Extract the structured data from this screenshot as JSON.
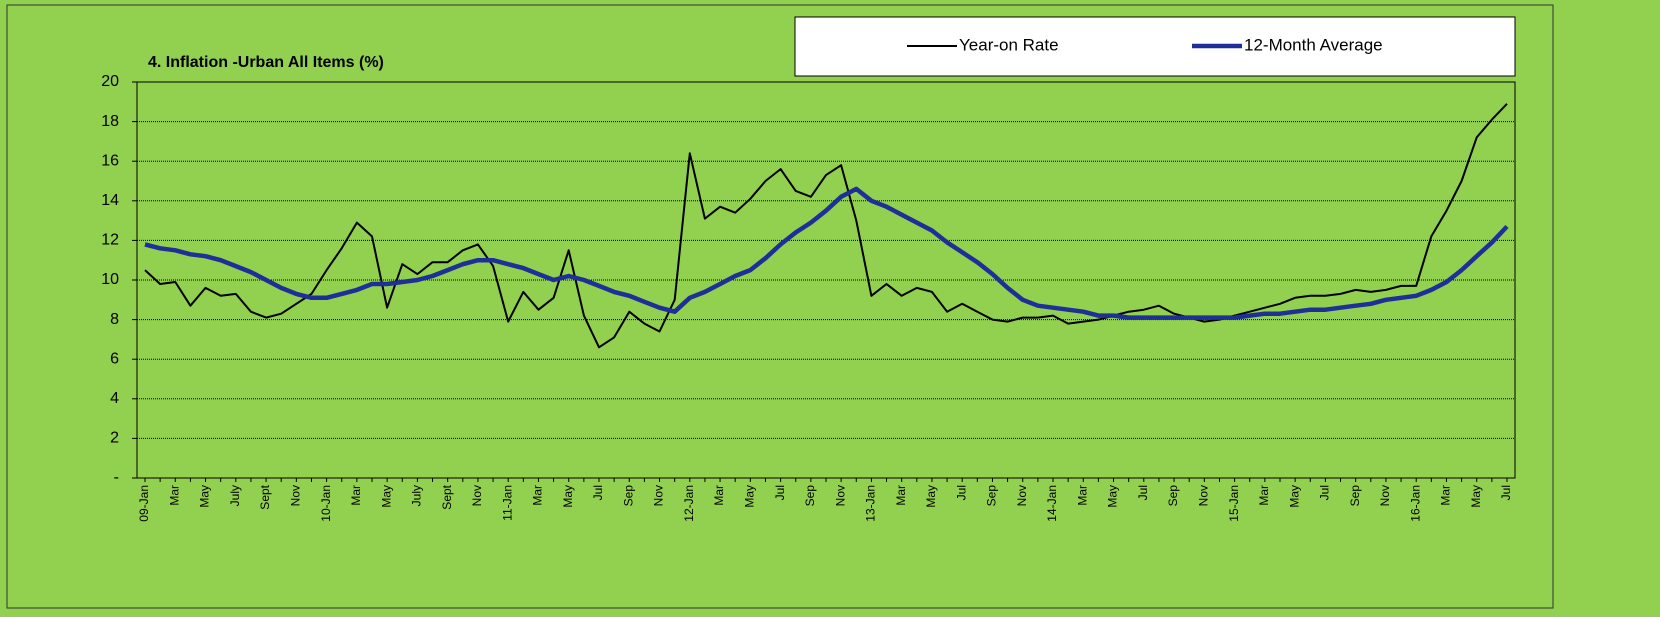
{
  "chart_data": {
    "type": "line",
    "title": "4. Inflation -Urban All Items (%)",
    "categories": [
      "09-Jan",
      null,
      "Mar",
      null,
      "May",
      null,
      "July",
      null,
      "Sept",
      null,
      "Nov",
      null,
      "10-Jan",
      null,
      "Mar",
      null,
      "May",
      null,
      "July",
      null,
      "Sept",
      null,
      "Nov",
      null,
      "11-Jan",
      null,
      "Mar",
      null,
      "May",
      null,
      "Jul",
      null,
      "Sep",
      null,
      "Nov",
      null,
      "12-Jan",
      null,
      "Mar",
      null,
      "May",
      null,
      "Jul",
      null,
      "Sep",
      null,
      "Nov",
      null,
      "13-Jan",
      null,
      "Mar",
      null,
      "May",
      null,
      "Jul",
      null,
      "Sep",
      null,
      "Nov",
      null,
      "14-Jan",
      null,
      "Mar",
      null,
      "May",
      null,
      "Jul",
      null,
      "Sep",
      null,
      "Nov",
      null,
      "15-Jan",
      null,
      "Mar",
      null,
      "May",
      null,
      "Jul",
      null,
      "Sep",
      null,
      "Nov",
      null,
      "16-Jan",
      null,
      "Mar",
      null,
      "May",
      null,
      "Jul"
    ],
    "series": [
      {
        "name": "Year-on Rate",
        "color": "#000000",
        "width": 2,
        "values": [
          10.5,
          9.8,
          9.9,
          8.7,
          9.6,
          9.2,
          9.3,
          8.4,
          8.1,
          8.3,
          8.8,
          9.3,
          10.5,
          11.6,
          12.9,
          12.2,
          8.6,
          10.8,
          10.3,
          10.9,
          10.9,
          11.5,
          11.8,
          10.7,
          7.9,
          9.4,
          8.5,
          9.1,
          11.5,
          8.2,
          6.6,
          7.1,
          8.4,
          7.8,
          7.4,
          9.0,
          16.4,
          13.1,
          13.7,
          13.4,
          14.1,
          15.0,
          15.6,
          14.5,
          14.2,
          15.3,
          15.8,
          13.0,
          9.2,
          9.8,
          9.2,
          9.6,
          9.4,
          8.4,
          8.8,
          8.4,
          8.0,
          7.9,
          8.1,
          8.1,
          8.2,
          7.8,
          7.9,
          8.0,
          8.2,
          8.4,
          8.5,
          8.7,
          8.3,
          8.1,
          7.9,
          8.0,
          8.2,
          8.4,
          8.6,
          8.8,
          9.1,
          9.2,
          9.2,
          9.3,
          9.5,
          9.4,
          9.5,
          9.7,
          9.7,
          12.2,
          13.5,
          15.0,
          17.2,
          18.1,
          18.9
        ]
      },
      {
        "name": "12-Month Average",
        "color": "#1f2f99",
        "width": 4.5,
        "values": [
          11.8,
          11.6,
          11.5,
          11.3,
          11.2,
          11.0,
          10.7,
          10.4,
          10.0,
          9.6,
          9.3,
          9.1,
          9.1,
          9.3,
          9.5,
          9.8,
          9.8,
          9.9,
          10.0,
          10.2,
          10.5,
          10.8,
          11.0,
          11.0,
          10.8,
          10.6,
          10.3,
          10.0,
          10.2,
          10.0,
          9.7,
          9.4,
          9.2,
          8.9,
          8.6,
          8.4,
          9.1,
          9.4,
          9.8,
          10.2,
          10.5,
          11.1,
          11.8,
          12.4,
          12.9,
          13.5,
          14.2,
          14.6,
          14.0,
          13.7,
          13.3,
          12.9,
          12.5,
          11.9,
          11.4,
          10.9,
          10.3,
          9.6,
          9.0,
          8.7,
          8.6,
          8.5,
          8.4,
          8.2,
          8.2,
          8.1,
          8.1,
          8.1,
          8.1,
          8.1,
          8.1,
          8.1,
          8.1,
          8.2,
          8.3,
          8.3,
          8.4,
          8.5,
          8.5,
          8.6,
          8.7,
          8.8,
          9.0,
          9.1,
          9.2,
          9.5,
          9.9,
          10.5,
          11.2,
          11.9,
          12.7
        ]
      }
    ],
    "ylim": [
      0,
      20
    ],
    "yticks": [
      {
        "value": 0,
        "label": "-"
      },
      2,
      4,
      6,
      8,
      10,
      12,
      14,
      16,
      18,
      20
    ],
    "grid": true,
    "legend": "top-right"
  }
}
